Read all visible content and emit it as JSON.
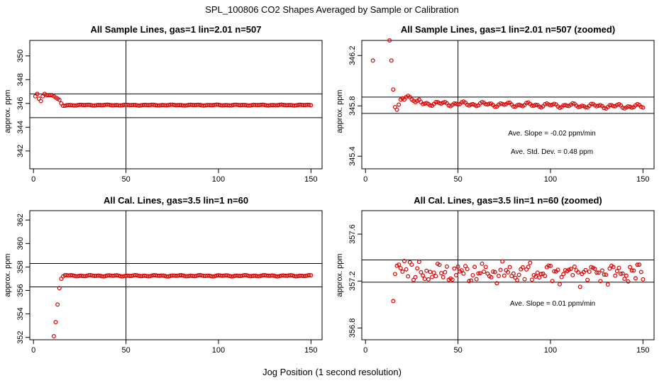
{
  "figure": {
    "title": "SPL_100806  CO2 Shapes Averaged by Sample or Calibration",
    "xlabel": "Jog Position (1 second resolution)",
    "marker_color": "#dd0000"
  },
  "chart_data": [
    {
      "type": "scatter",
      "title": "All Sample Lines, gas=1 lin=2.01 n=507",
      "ylabel": "approx. ppm",
      "xlim": [
        -2,
        156
      ],
      "ylim": [
        340.5,
        351.3
      ],
      "xticks": [
        0,
        50,
        100,
        150
      ],
      "yticks": [
        342,
        344,
        346,
        348,
        350
      ],
      "vline": 50,
      "hlines": [
        346.8,
        344.8
      ],
      "annotations": [],
      "series": [
        {
          "x": [
            1,
            2,
            3,
            4,
            5,
            6,
            7,
            8,
            9,
            10,
            11,
            12,
            13,
            14,
            15,
            16,
            17
          ],
          "y": [
            346.6,
            346.8,
            346.4,
            346.2,
            346.6,
            346.8,
            346.7,
            346.7,
            346.7,
            346.7,
            346.6,
            346.5,
            346.4,
            346.3,
            346.0,
            345.8,
            345.8
          ]
        },
        {
          "from": 18,
          "to": 150,
          "base": 345.86,
          "amp": 0.04,
          "phase": 0.4
        }
      ]
    },
    {
      "type": "scatter",
      "title": "All Sample Lines, gas=1 lin=2.01 n=507 (zoomed)",
      "ylabel": "approx. ppm",
      "xlim": [
        -2,
        156
      ],
      "ylim": [
        345.3,
        346.32
      ],
      "xticks": [
        0,
        50,
        100,
        150
      ],
      "yticks": [
        345.4,
        345.8,
        346.2
      ],
      "vline": 50,
      "hlines": [
        345.87,
        345.74
      ],
      "annotations": [
        "Ave. Slope =  -0.02  ppm/min",
        "Ave. Std. Dev. =  0.48  ppm"
      ],
      "series": [
        {
          "x": [
            4,
            13,
            14,
            15,
            16,
            17,
            18,
            19,
            20,
            21,
            22,
            23,
            24,
            25,
            26,
            27,
            28,
            29,
            30
          ],
          "y": [
            346.16,
            346.32,
            346.16,
            345.93,
            345.79,
            345.77,
            345.81,
            345.85,
            345.86,
            345.85,
            345.87,
            345.88,
            345.87,
            345.85,
            345.84,
            345.83,
            345.84,
            345.85,
            345.83
          ]
        },
        {
          "from": 31,
          "to": 150,
          "base": 345.82,
          "amp": 0.02,
          "slope": -0.00022,
          "phase": 1.1
        }
      ]
    },
    {
      "type": "scatter",
      "title": "All Cal. Lines, gas=3.5 lin=1 n=60",
      "ylabel": "approx. ppm",
      "xlim": [
        -2,
        156
      ],
      "ylim": [
        351.8,
        362.8
      ],
      "xticks": [
        0,
        50,
        100,
        150
      ],
      "yticks": [
        352,
        354,
        356,
        358,
        360,
        362
      ],
      "vline": 50,
      "hlines": [
        358.3,
        356.3
      ],
      "annotations": [],
      "series": [
        {
          "x": [
            11,
            12,
            13,
            14,
            15,
            16,
            17,
            18
          ],
          "y": [
            352.1,
            353.3,
            354.8,
            356.2,
            357.0,
            357.2,
            357.3,
            357.3
          ]
        },
        {
          "from": 19,
          "to": 150,
          "base": 357.25,
          "amp": 0.06,
          "phase": 2.3
        }
      ]
    },
    {
      "type": "scatter",
      "title": "All Cal. Lines, gas=3.5 lin=1 n=60 (zoomed)",
      "ylabel": "approx. ppm",
      "xlim": [
        -2,
        156
      ],
      "ylim": [
        356.7,
        357.8
      ],
      "xticks": [
        0,
        50,
        100,
        150
      ],
      "yticks": [
        356.8,
        357.2,
        357.6
      ],
      "vline": 50,
      "hlines": [
        357.38,
        357.19
      ],
      "annotations": [
        "Ave. Slope =  0.01  ppm/min"
      ],
      "series": [
        {
          "x": [
            15,
            16,
            17,
            18,
            19,
            20,
            21,
            22,
            23,
            24,
            25,
            26
          ],
          "y": [
            357.03,
            357.26,
            357.33,
            357.34,
            357.31,
            357.28,
            357.37,
            357.3,
            357.24,
            357.36,
            357.34,
            357.21
          ]
        },
        {
          "from": 27,
          "to": 150,
          "base": 357.27,
          "amp": 0.065,
          "phase": 0.7,
          "noisy": true
        }
      ]
    }
  ]
}
